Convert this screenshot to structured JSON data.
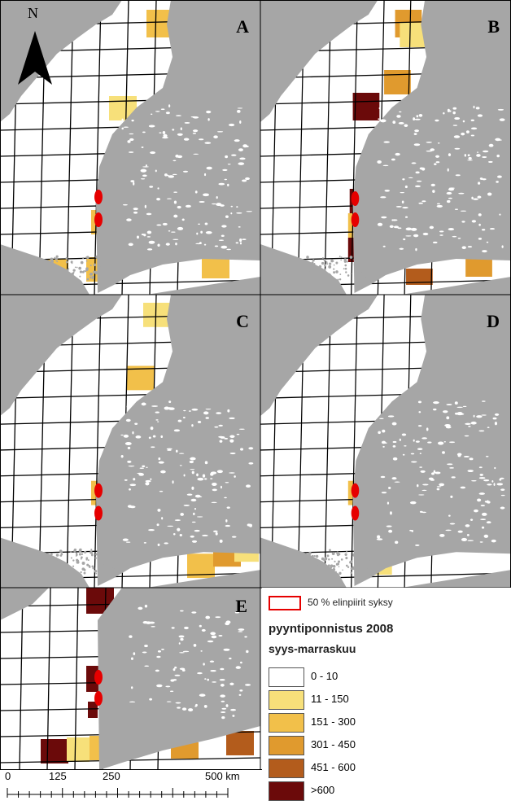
{
  "colors": {
    "land": "#a6a6a6",
    "sea": "#ffffff",
    "grid": "#000000",
    "contour": "#e60000",
    "class_0_10": "#ffffff",
    "class_11_150": "#f7e07a",
    "class_151_300": "#f2c04a",
    "class_301_450": "#e09a2e",
    "class_451_600": "#b35c1c",
    "class_600_plus": "#6b0a0a"
  },
  "panels": [
    {
      "id": "A",
      "label": "A",
      "has_north_arrow": true,
      "north_label": "N"
    },
    {
      "id": "B",
      "label": "B"
    },
    {
      "id": "C",
      "label": "C"
    },
    {
      "id": "D",
      "label": "D"
    },
    {
      "id": "E",
      "label": "E"
    }
  ],
  "legend": {
    "contour_label": "50 % elinpiirit syksy",
    "title_line1": "pyyntiponnistus 2008",
    "title_line2": "syys-marraskuu",
    "classes": [
      {
        "label": "0 - 10",
        "color": "#ffffff"
      },
      {
        "label": "11 - 150",
        "color": "#f7e07a"
      },
      {
        "label": "151 - 300",
        "color": "#f2c04a"
      },
      {
        "label": "301 - 450",
        "color": "#e09a2e"
      },
      {
        "label": "451 - 600",
        "color": "#b35c1c"
      },
      {
        "label": ">600",
        "color": "#6b0a0a"
      }
    ]
  },
  "scale": {
    "labels": [
      "0",
      "125",
      "250",
      "500 km"
    ]
  }
}
